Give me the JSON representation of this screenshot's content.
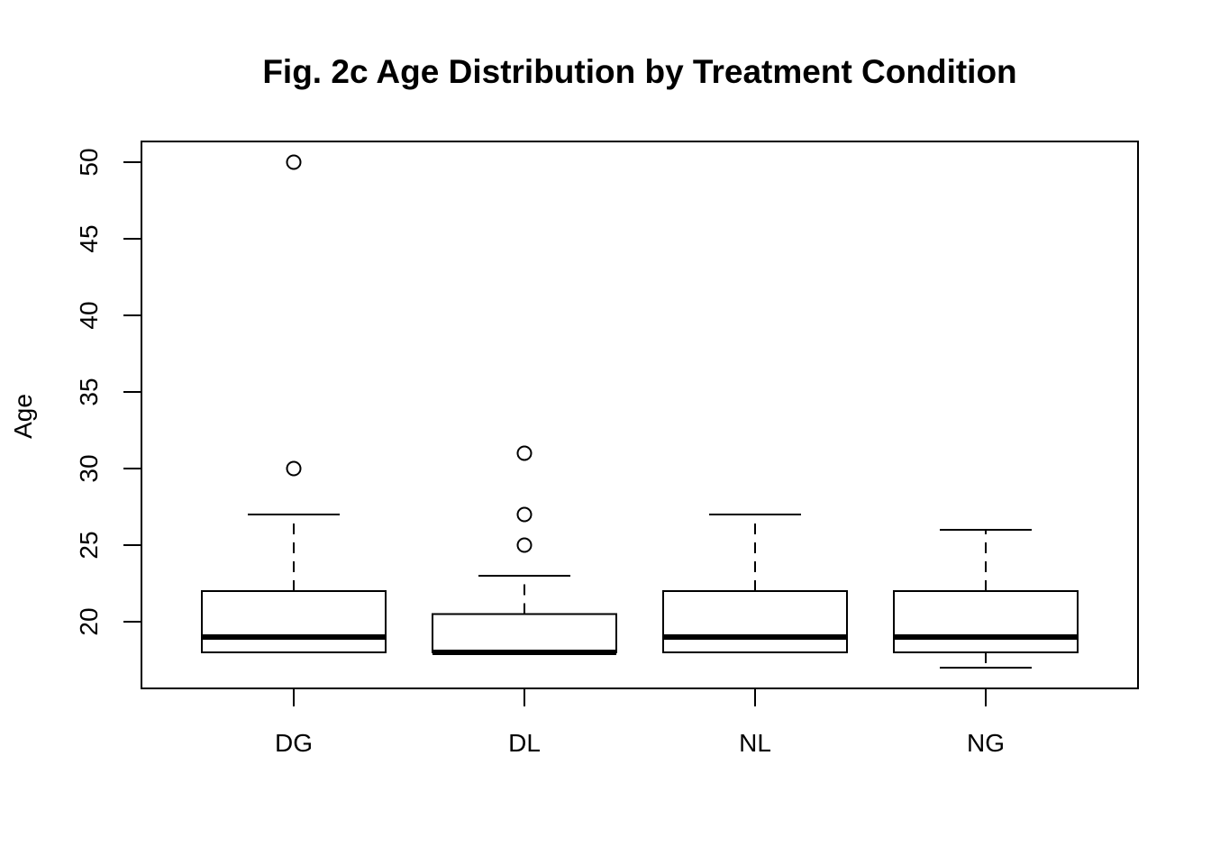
{
  "chart_data": {
    "type": "boxplot",
    "title": "Fig. 2c Age Distribution by Treatment Condition",
    "xlabel": "",
    "ylabel": "Age",
    "ylim": [
      15.7,
      51.3
    ],
    "yticks": [
      20,
      25,
      30,
      35,
      40,
      45,
      50
    ],
    "categories": [
      "DG",
      "DL",
      "NL",
      "NG"
    ],
    "boxes": [
      {
        "category": "DG",
        "whisker_low": 18,
        "q1": 18,
        "median": 19,
        "q3": 22,
        "whisker_high": 27,
        "outliers": [
          30,
          50
        ]
      },
      {
        "category": "DL",
        "whisker_low": 18,
        "q1": 18,
        "median": 18,
        "q3": 20.5,
        "whisker_high": 23,
        "outliers": [
          25,
          27,
          31
        ]
      },
      {
        "category": "NL",
        "whisker_low": 18,
        "q1": 18,
        "median": 19,
        "q3": 22,
        "whisker_high": 27,
        "outliers": []
      },
      {
        "category": "NG",
        "whisker_low": 17,
        "q1": 18,
        "median": 19,
        "q3": 22,
        "whisker_high": 26,
        "outliers": []
      }
    ],
    "grid": false,
    "legend": "none"
  }
}
